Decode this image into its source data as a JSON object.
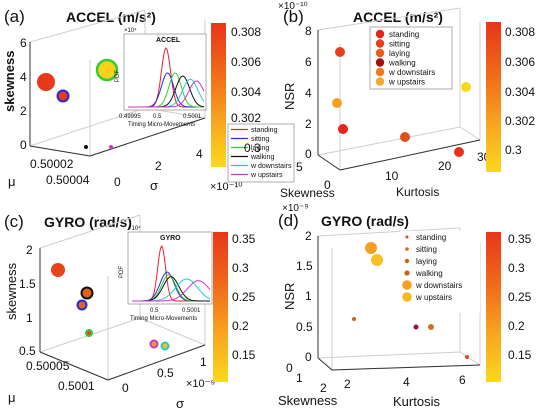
{
  "figure": {
    "panels": {
      "a": {
        "letter": "(a)",
        "title": "ACCEL (m/s²)",
        "ylabel": "skewness",
        "xlabel_mu": "μ",
        "xlabel_sigma": "σ",
        "ticks_y": [
          "0",
          "2",
          "4",
          "6"
        ],
        "ticks_mu": [
          "0.50002",
          "0.50004"
        ],
        "ticks_sigma": [
          "0",
          "2",
          "4"
        ],
        "exponent": "×10⁻¹⁰",
        "colorbar_ticks": [
          "0.308",
          "0.306",
          "0.304",
          "0.302",
          "0.3"
        ]
      },
      "b": {
        "letter": "(b)",
        "title": "ACCEL (m/s²)",
        "ylabel": "NSR",
        "xlabel_skew": "Skewness",
        "xlabel_kurt": "Kurtosis",
        "exponent_top": "×10⁻¹⁰",
        "ticks_y": [
          "0",
          "2",
          "4",
          "6",
          "8"
        ],
        "ticks_skew": [
          "5",
          "0"
        ],
        "ticks_kurt": [
          "10",
          "20",
          "30"
        ],
        "colorbar_ticks": [
          "0.308",
          "0.306",
          "0.304",
          "0.302",
          "0.3"
        ]
      },
      "c": {
        "letter": "(c)",
        "title": "GYRO (rad/s)",
        "ylabel": "skewness",
        "xlabel_mu": "μ",
        "xlabel_sigma": "σ",
        "ticks_y": [
          "0.5",
          "1",
          "1.5",
          "2"
        ],
        "ticks_mu": [
          "0.50005",
          "0.5001"
        ],
        "ticks_sigma": [
          "0",
          "0.5",
          "1"
        ],
        "exponent": "×10⁻⁹",
        "colorbar_ticks": [
          "0.35",
          "0.3",
          "0.25",
          "0.2",
          "0.15"
        ]
      },
      "d": {
        "letter": "(d)",
        "title": "GYRO (rad/s)",
        "ylabel": "NSR",
        "xlabel_skew": "Skewness",
        "xlabel_kurt": "Kurtosis",
        "exponent_top": "×10⁻⁹",
        "ticks_y": [
          "0",
          "0.5",
          "1",
          "1.5",
          "2"
        ],
        "ticks_skew": [
          "2",
          "1",
          "0"
        ],
        "ticks_kurt": [
          "2",
          "4",
          "6"
        ],
        "colorbar_ticks": [
          "0.35",
          "0.3",
          "0.25",
          "0.2",
          "0.15"
        ]
      }
    },
    "insets": {
      "a": {
        "title": "ACCEL",
        "ylabel": "PDF",
        "xlabel": "Timing Micro-Movements",
        "exp": "×10⁴",
        "xticks": [
          "0.49995",
          "0.5",
          "0.5001"
        ]
      },
      "c": {
        "title": "GYRO",
        "ylabel": "PDF",
        "xlabel": "Timing Micro-Movements",
        "exp": "×10⁴",
        "xticks": [
          "0.5",
          "0.5001"
        ]
      }
    },
    "legend_lines": {
      "labels": [
        "standing",
        "sitting",
        "laying",
        "walking",
        "w downstairs",
        "w upstairs"
      ],
      "colors": [
        "#e8202a",
        "#2a2ad6",
        "#33cc33",
        "#111111",
        "#22cccc",
        "#cc33cc"
      ]
    },
    "legend_b": {
      "labels": [
        "standing",
        "sitting",
        "laying",
        "walking",
        "w downstairs",
        "w upstairs"
      ],
      "colors": [
        "#e8241c",
        "#e8401c",
        "#f05a1c",
        "#a01010",
        "#f0781c",
        "#f8a830"
      ]
    },
    "legend_d": {
      "labels": [
        "standing",
        "sitting",
        "laying",
        "walking",
        "w downstairs",
        "w upstairs"
      ],
      "colors": [
        "#e8441c",
        "#e0601c",
        "#c86418",
        "#c86418",
        "#f5a020",
        "#f8b820"
      ]
    }
  },
  "chart_data": [
    {
      "panel": "a",
      "type": "scatter",
      "title": "ACCEL (m/s²)",
      "xlabel": "μ",
      "ylabel": "σ",
      "zlabel": "skewness",
      "points": [
        {
          "size": "large",
          "fill": "#e83a1a",
          "edge": "#e83a1a",
          "skewness": 3.8
        },
        {
          "size": "medium",
          "fill": "#e83a1a",
          "edge": "#2a2ad6",
          "skewness": 2.7
        },
        {
          "size": "large",
          "fill": "#f8d21c",
          "edge": "#33cc33",
          "skewness": 4.5
        },
        {
          "size": "small",
          "fill": "#111111",
          "edge": "#111111",
          "skewness": 0
        },
        {
          "size": "small",
          "fill": "#cc33cc",
          "edge": "#cc33cc",
          "skewness": 0
        }
      ],
      "zlim": [
        0,
        6
      ],
      "colorbar": {
        "min": 0.3,
        "max": 0.308
      }
    },
    {
      "panel": "a-inset",
      "type": "line",
      "title": "ACCEL",
      "xlabel": "Timing Micro-Movements",
      "ylabel": "PDF",
      "series": [
        {
          "name": "standing",
          "peak_x": 0.5,
          "peak": 0.95,
          "width": 0.06
        },
        {
          "name": "sitting",
          "peak_x": 0.52,
          "peak": 0.55,
          "width": 0.08
        },
        {
          "name": "laying",
          "peak_x": 0.62,
          "peak": 0.55,
          "width": 0.08
        },
        {
          "name": "walking",
          "peak_x": 0.72,
          "peak": 0.5,
          "width": 0.09
        },
        {
          "name": "w downstairs",
          "peak_x": 0.82,
          "peak": 0.45,
          "width": 0.1
        },
        {
          "name": "w upstairs",
          "peak_x": 0.9,
          "peak": 0.42,
          "width": 0.1
        }
      ]
    },
    {
      "panel": "b",
      "type": "scatter",
      "title": "ACCEL (m/s²)",
      "xlabel": "Kurtosis",
      "ylabel": "Skewness",
      "zlabel": "NSR",
      "points": [
        {
          "name": "standing",
          "skewness": 5,
          "kurtosis": 3,
          "nsr": 6.5
        },
        {
          "name": "sitting",
          "skewness": 5,
          "kurtosis": 2,
          "nsr": 3.2
        },
        {
          "name": "laying",
          "skewness": 4,
          "kurtosis": 3,
          "nsr": 1.5
        },
        {
          "name": "walking",
          "skewness": 0,
          "kurtosis": 10,
          "nsr": 0.2
        },
        {
          "name": "w downstairs",
          "skewness": 0,
          "kurtosis": 22,
          "nsr": 0.1
        },
        {
          "name": "w upstairs",
          "skewness": 0,
          "kurtosis": 29,
          "nsr": 4.2
        }
      ],
      "zlim": [
        0,
        8
      ],
      "colorbar": {
        "min": 0.3,
        "max": 0.308
      }
    },
    {
      "panel": "c",
      "type": "scatter",
      "title": "GYRO (rad/s)",
      "xlabel": "μ",
      "ylabel": "σ",
      "zlabel": "skewness",
      "points": [
        {
          "size": "medium",
          "fill": "#e8441c",
          "edge": "#e8441c",
          "skewness": 1.7
        },
        {
          "size": "small",
          "fill": "#e0601c",
          "edge": "#111111",
          "skewness": 1.35
        },
        {
          "size": "small",
          "fill": "#e0601c",
          "edge": "#2a2ad6",
          "skewness": 1.15
        },
        {
          "size": "tiny",
          "fill": "#e8441c",
          "edge": "#33cc33",
          "skewness": 0.7
        },
        {
          "size": "tiny",
          "fill": "#f5a020",
          "edge": "#cc33cc",
          "skewness": 0.55
        },
        {
          "size": "tiny",
          "fill": "#f8c020",
          "edge": "#22cccc",
          "skewness": 0.55
        }
      ],
      "zlim": [
        0.5,
        2
      ],
      "colorbar": {
        "min": 0.15,
        "max": 0.35
      }
    },
    {
      "panel": "c-inset",
      "type": "line",
      "title": "GYRO",
      "xlabel": "Timing Micro-Movements",
      "ylabel": "PDF",
      "series": [
        {
          "name": "standing",
          "peak_x": 0.38,
          "peak": 0.95,
          "width": 0.05
        },
        {
          "name": "sitting",
          "peak_x": 0.45,
          "peak": 0.5,
          "width": 0.09
        },
        {
          "name": "laying",
          "peak_x": 0.47,
          "peak": 0.45,
          "width": 0.09
        },
        {
          "name": "walking",
          "peak_x": 0.5,
          "peak": 0.42,
          "width": 0.1
        },
        {
          "name": "w downstairs",
          "peak_x": 0.7,
          "peak": 0.38,
          "width": 0.14
        },
        {
          "name": "w upstairs",
          "peak_x": 0.85,
          "peak": 0.35,
          "width": 0.14
        }
      ]
    },
    {
      "panel": "d",
      "type": "scatter",
      "title": "GYRO (rad/s)",
      "xlabel": "Kurtosis",
      "ylabel": "Skewness",
      "zlabel": "NSR",
      "points": [
        {
          "name": "standing",
          "nsr": 0.1,
          "kurtosis": 6
        },
        {
          "name": "sitting",
          "nsr": 0.5,
          "kurtosis": 3.5
        },
        {
          "name": "laying",
          "nsr": 0.65,
          "kurtosis": 2
        },
        {
          "name": "walking",
          "nsr": 0.5,
          "kurtosis": 4
        },
        {
          "name": "w downstairs",
          "nsr": 1.75,
          "kurtosis": 3
        },
        {
          "name": "w upstairs",
          "nsr": 1.6,
          "kurtosis": 3.2
        }
      ],
      "zlim": [
        0,
        2
      ],
      "colorbar": {
        "min": 0.15,
        "max": 0.35
      }
    }
  ]
}
